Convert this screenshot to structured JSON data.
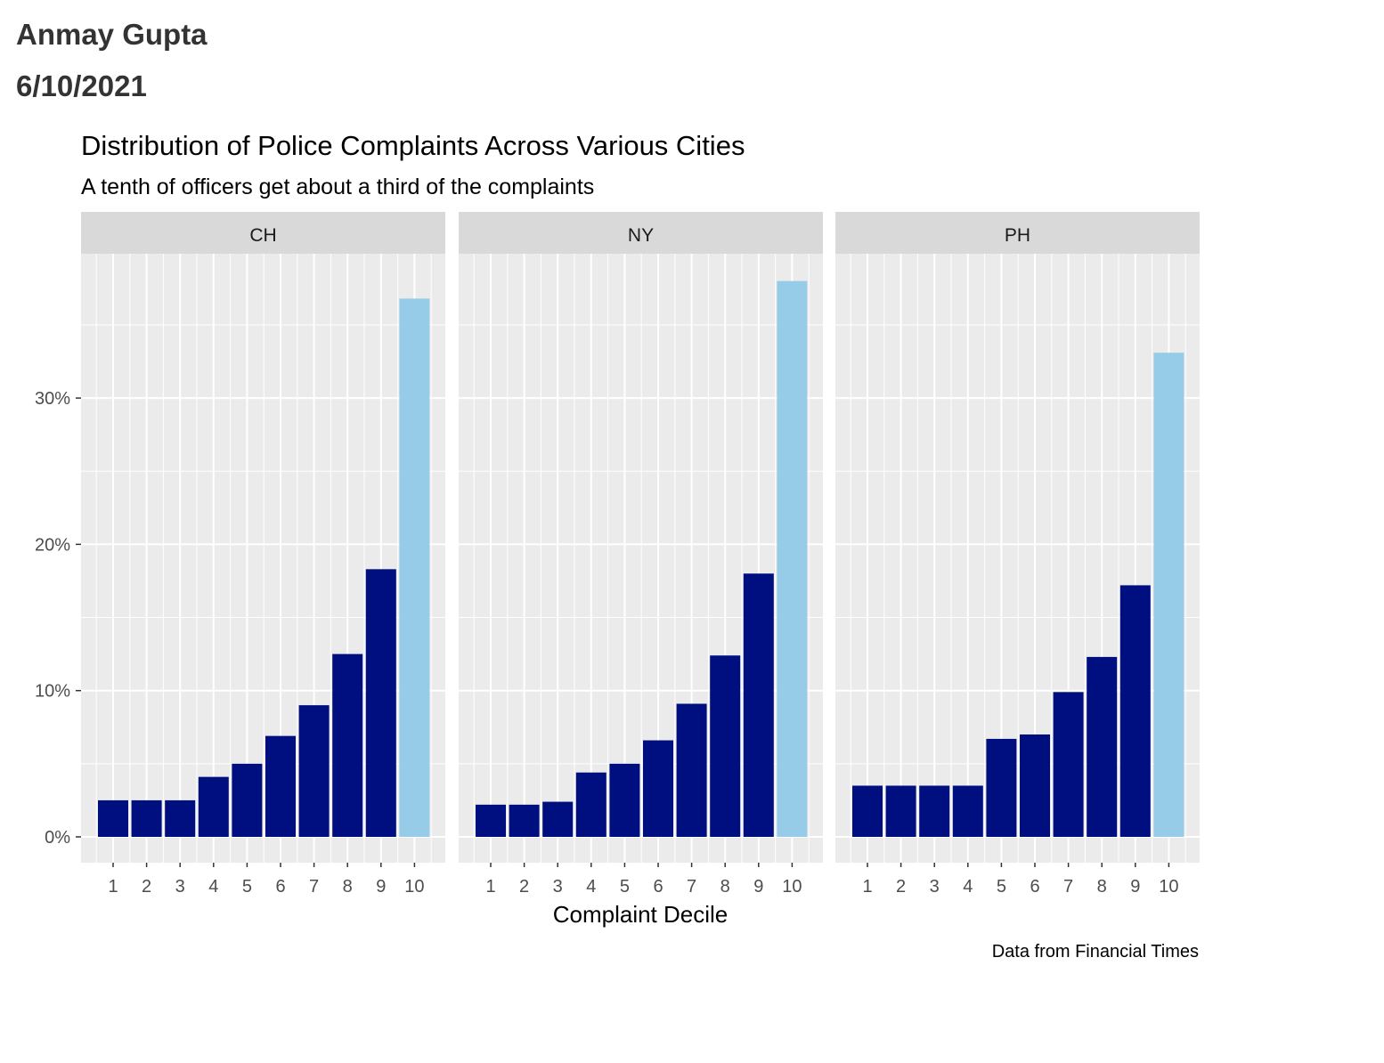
{
  "header": {
    "author": "Anmay Gupta",
    "date": "6/10/2021"
  },
  "chart_data": {
    "type": "bar",
    "title": "Distribution of Police Complaints Across Various Cities",
    "subtitle": "A tenth of officers get about a third of the complaints",
    "xlabel": "Complaint Decile",
    "ylabel": "",
    "caption": "Data from Financial Times",
    "categories": [
      "1",
      "2",
      "3",
      "4",
      "5",
      "6",
      "7",
      "8",
      "9",
      "10"
    ],
    "y_ticks": [
      0,
      10,
      20,
      30
    ],
    "y_tick_labels": [
      "0%",
      "10%",
      "20%",
      "30%"
    ],
    "ylim": [
      -1.8,
      40
    ],
    "grid": true,
    "legend": "none",
    "colors": {
      "decile_1_9": "#000f80",
      "decile_10": "#97cce8",
      "panel_bg": "#ebebeb",
      "strip_bg": "#d9d9d9"
    },
    "facets": [
      {
        "name": "CH",
        "values": [
          2.5,
          2.5,
          2.5,
          4.1,
          5.0,
          6.9,
          9.0,
          12.5,
          18.3,
          36.8
        ]
      },
      {
        "name": "NY",
        "values": [
          2.2,
          2.2,
          2.4,
          4.4,
          5.0,
          6.6,
          9.1,
          12.4,
          18.0,
          38.0
        ]
      },
      {
        "name": "PH",
        "values": [
          3.5,
          3.5,
          3.5,
          3.5,
          6.7,
          7.0,
          9.9,
          12.3,
          17.2,
          33.1
        ]
      }
    ]
  }
}
